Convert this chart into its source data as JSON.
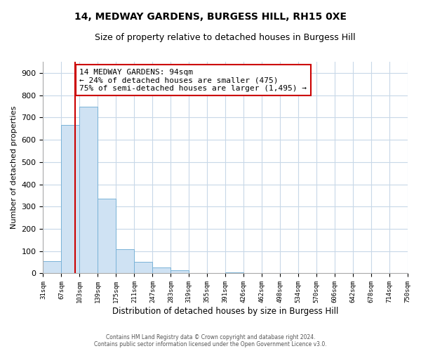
{
  "title": "14, MEDWAY GARDENS, BURGESS HILL, RH15 0XE",
  "subtitle": "Size of property relative to detached houses in Burgess Hill",
  "xlabel": "Distribution of detached houses by size in Burgess Hill",
  "ylabel": "Number of detached properties",
  "bar_edges": [
    31,
    67,
    103,
    139,
    175,
    211,
    247,
    283,
    319,
    355,
    391,
    426,
    462,
    498,
    534,
    570,
    606,
    642,
    678,
    714,
    750
  ],
  "bar_heights": [
    55,
    665,
    750,
    335,
    110,
    52,
    27,
    15,
    0,
    0,
    5,
    0,
    0,
    0,
    0,
    0,
    0,
    0,
    0,
    0
  ],
  "bar_color": "#cfe2f3",
  "bar_edge_color": "#7ab3d8",
  "property_line_x": 94,
  "property_line_color": "#cc0000",
  "ylim": [
    0,
    950
  ],
  "yticks": [
    0,
    100,
    200,
    300,
    400,
    500,
    600,
    700,
    800,
    900
  ],
  "annotation_box_text": "14 MEDWAY GARDENS: 94sqm\n← 24% of detached houses are smaller (475)\n75% of semi-detached houses are larger (1,495) →",
  "footer_line1": "Contains HM Land Registry data © Crown copyright and database right 2024.",
  "footer_line2": "Contains public sector information licensed under the Open Government Licence v3.0.",
  "bg_color": "#ffffff",
  "grid_color": "#c8d8e8",
  "tick_labels": [
    "31sqm",
    "67sqm",
    "103sqm",
    "139sqm",
    "175sqm",
    "211sqm",
    "247sqm",
    "283sqm",
    "319sqm",
    "355sqm",
    "391sqm",
    "426sqm",
    "462sqm",
    "498sqm",
    "534sqm",
    "570sqm",
    "606sqm",
    "642sqm",
    "678sqm",
    "714sqm",
    "750sqm"
  ]
}
